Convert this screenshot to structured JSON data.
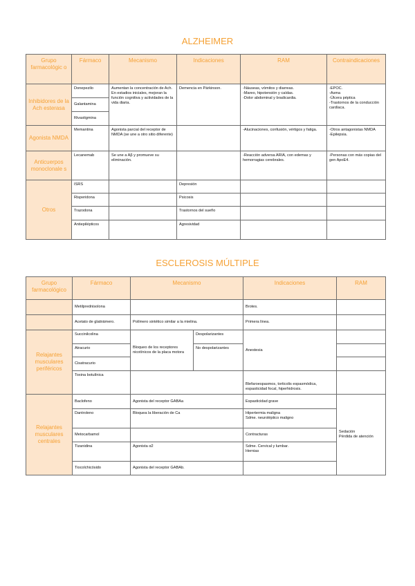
{
  "alzheimer": {
    "title": "ALZHEIMER",
    "headers": [
      "Grupo farmacológic o",
      "Fármaco",
      "Mecanismo",
      "Indicaciones",
      "RAM",
      "Contraindicaciones"
    ],
    "inhibidores": {
      "group": "Inhibidores de la Ach esterasa",
      "drugs": [
        "Donepezilo",
        "Galantamina",
        "Rivastigmina"
      ],
      "mecanismo": "Aumentan la concentración de Ach.\nEn estadios iniciales, mejoran la función cognitiva y actividades de la vida diaria.",
      "indicaciones": "Demencia en Párkinson.",
      "ram": "-Náuseas, vómitos y diarreas.\n-Mareo, hipotensión y caídas.\n-Dolor abdominal y bradicardia.",
      "contra": "-EPOC.\n-Asma\n-Úlcera péptica\n-Trastornos de la conducción cardíaca."
    },
    "agonista": {
      "group": "Agonista NMDA",
      "drug": "Memantina",
      "mecanismo": "Agonista parcial del receptor de NMDA (se une a otro sitio diferente)",
      "indicaciones": "",
      "ram": "-Alucinaciones, confusión, vértigos y fatiga.",
      "contra": "-Otros antagonistas NMDA\n-Epilepsia."
    },
    "anticuerpos": {
      "group": "Anticuerpos monoclonale s",
      "drug": "Lecanemab",
      "mecanismo": "Se une a Aβ y promueve su eliminación.",
      "indicaciones": "",
      "ram": "-Reacción adversa ARIA, con edemas y hemorragias cerebrales.",
      "contra": "-Personas con más copias del gen ApoE4."
    },
    "otros": {
      "group": "Otros",
      "rows": [
        {
          "drug": "ISRS",
          "indicaciones": "Depresión"
        },
        {
          "drug": "Risperidona",
          "indicaciones": "Psicosis"
        },
        {
          "drug": "Trazodona",
          "indicaciones": "Trastornos del sueño"
        },
        {
          "drug": "Antiepilépticos",
          "indicaciones": "Agresividad"
        }
      ]
    }
  },
  "esclerosis": {
    "title": "ESCLEROSIS MÚLTIPLE",
    "headers": [
      "Grupo farmacológico",
      "Fármaco",
      "Mecanismo",
      "Indicaciones",
      "RAM"
    ],
    "top": [
      {
        "drug": "Metilprednisolona",
        "mecanismo": "",
        "indicaciones": "Brotes."
      },
      {
        "drug": "Acetato de glatirámero.",
        "mecanismo": "Polímero sintético similar a la mielina.",
        "indicaciones": "Primera línea."
      }
    ],
    "perifericos": {
      "group": "Relajantes musculares periféricos",
      "drugs": [
        "Succinilcolina",
        "Atracurio",
        "Cisatracurio"
      ],
      "mecanismo": "Bloqueo de los receptores nicotínicos de la placa motora",
      "sub": [
        "Despolarizantes",
        "No despolarizantes"
      ],
      "indicaciones": "Anestesia",
      "toxina": {
        "drug": "Toxina botulínica",
        "mecanismo": "",
        "indicaciones": "Blefaroespasmos, torticolis espasmódica, espasticidad focal, hiperhidrosis."
      }
    },
    "centrales": {
      "group": "Relajantes musculares centrales",
      "rows": [
        {
          "drug": "Baclofeno",
          "mecanismo": "Agonista del receptor GABAa",
          "indicaciones": "Espasticidad grave"
        },
        {
          "drug": "Dantroleno",
          "mecanismo": "Bloquea la liberación de Ca",
          "indicaciones": "Hipertermia maligna\nSdme. neuroléptico maligno"
        },
        {
          "drug": "Metocarbamol",
          "mecanismo": "",
          "indicaciones": "Contracturas"
        },
        {
          "drug": "Tizanidina",
          "mecanismo": "Agonista α2",
          "indicaciones": "Sdme. Cervical y lumbar.\nHernias"
        },
        {
          "drug": "Tiocolchicósido",
          "mecanismo": "Agonista del receptor GABAb.",
          "indicaciones": ""
        }
      ],
      "ram": "Sedación\nPérdida de atención"
    }
  }
}
